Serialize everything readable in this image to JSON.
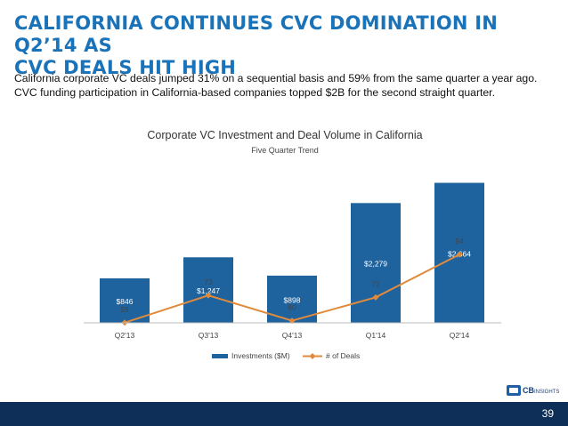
{
  "slide": {
    "title_line1": "CALIFORNIA CONTINUES CVC DOMINATION IN Q2’14 AS",
    "title_line2": "CVC DEALS HIT HIGH",
    "subtitle": "California corporate VC deals jumped 31% on a sequential basis and 59% from the same quarter a year ago. CVC funding participation in California-based companies topped $2B for the second straight quarter.",
    "page_number": "39",
    "logo_text": "CB",
    "logo_subtext": "INSIGHTS"
  },
  "colors": {
    "title": "#1a73b8",
    "bar": "#1f639e",
    "line": "#e08a3c",
    "footer": "#0e2f57"
  },
  "chart_data": {
    "type": "bar",
    "title": "Corporate VC Investment and Deal Volume in California",
    "subtitle": "Five Quarter Trend",
    "categories": [
      "Q2'13",
      "Q3'13",
      "Q4'13",
      "Q1'14",
      "Q2'14"
    ],
    "series": [
      {
        "name": "Investments ($M)",
        "type": "bar",
        "values": [
          846,
          1247,
          898,
          2279,
          2664
        ],
        "labels": [
          "$846",
          "$1,247",
          "$898",
          "$2,279",
          "$2,664"
        ]
      },
      {
        "name": "# of Deals",
        "type": "line",
        "values": [
          59,
          73,
          60,
          72,
          94
        ],
        "labels": [
          "59",
          "73",
          "60",
          "72",
          "94"
        ]
      }
    ],
    "legend_position": "bottom",
    "grid": false
  }
}
